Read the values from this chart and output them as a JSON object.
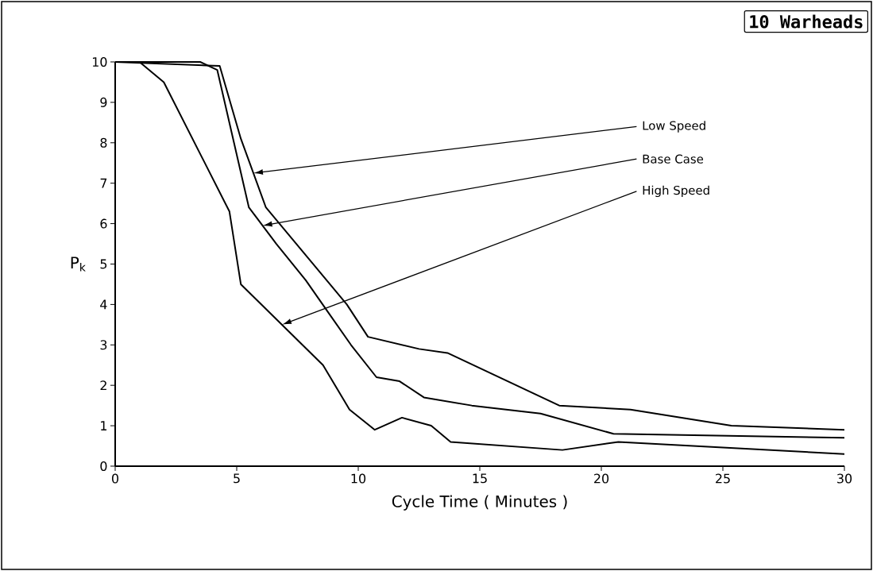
{
  "chart_data": {
    "type": "line",
    "title": "10 Warheads",
    "xlabel": "Cycle Time  ( Minutes )",
    "ylabel": "P$_{k}$",
    "xlim": [
      0,
      30
    ],
    "xticks": [
      0,
      5,
      10,
      15,
      20,
      25,
      30
    ],
    "ylim": [
      0,
      10
    ],
    "yticks": [
      0,
      1,
      2,
      3,
      4,
      5,
      6,
      7,
      8,
      9,
      10
    ],
    "grid": false,
    "marker": "none",
    "line_style": "solid",
    "series": [
      {
        "color": "#000000",
        "x": [
          0,
          4.3,
          5.17,
          6.2,
          9.53,
          10.4,
          12.5,
          13.67,
          18.27,
          21.2,
          25.35,
          30
        ],
        "values": [
          10.0,
          9.9,
          8.1,
          6.4,
          4.0,
          3.2,
          2.9,
          2.8,
          1.5,
          1.4,
          1.0,
          0.9
        ]
      },
      {
        "color": "#000000",
        "x": [
          0,
          3.5,
          4.2,
          5.5,
          6.63,
          7.84,
          8.77,
          9.7,
          10.75,
          11.7,
          12.7,
          14.67,
          17.5,
          20.5,
          30
        ],
        "values": [
          10.0,
          10.0,
          9.8,
          6.4,
          5.5,
          4.6,
          3.8,
          3.0,
          2.2,
          2.1,
          1.7,
          1.5,
          1.3,
          0.8,
          0.7
        ]
      },
      {
        "color": "#000000",
        "x": [
          0,
          1,
          2,
          4.7,
          5.17,
          8.55,
          9.64,
          10.68,
          11.8,
          13.0,
          13.8,
          18.4,
          20.7,
          30
        ],
        "values": [
          10.0,
          10.0,
          9.5,
          6.3,
          4.5,
          2.5,
          1.4,
          0.9,
          1.2,
          1.0,
          0.6,
          0.4,
          0.6,
          0.3
        ]
      }
    ],
    "annotations": [
      "Low Speed",
      "Base Case",
      "High Speed"
    ]
  }
}
